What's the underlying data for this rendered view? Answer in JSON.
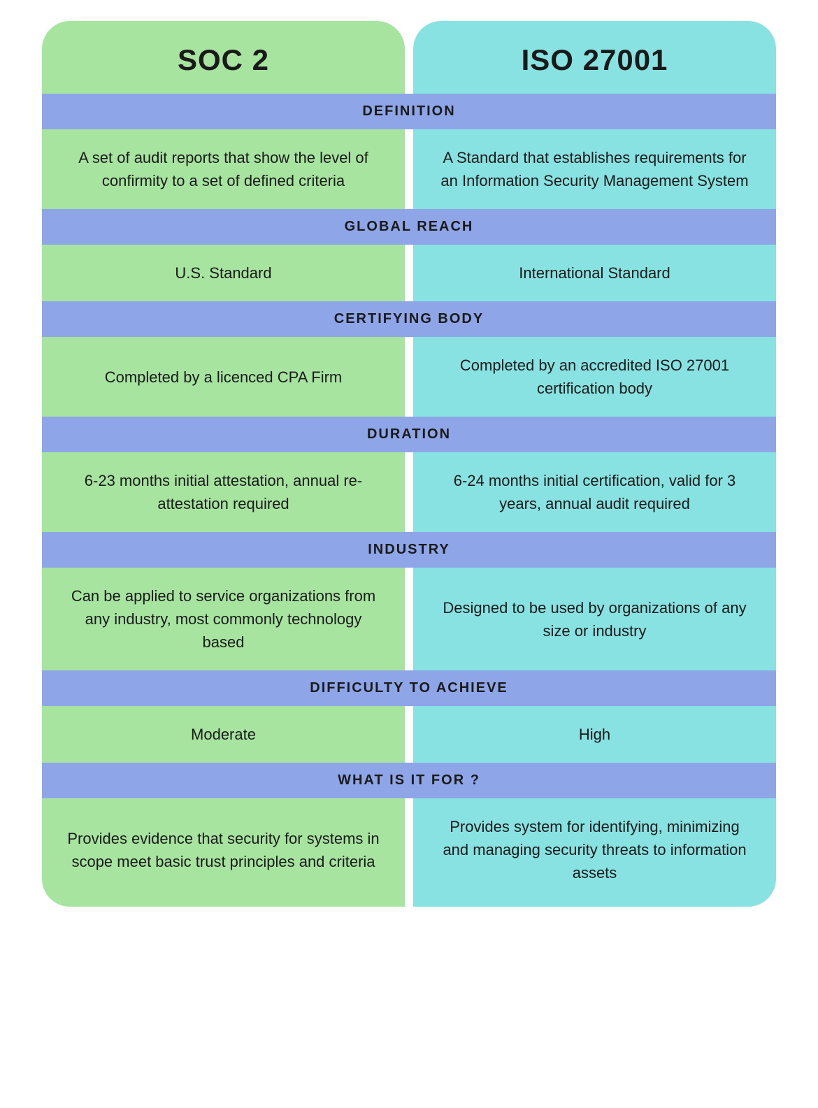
{
  "type": "infographic",
  "layout": "two-column-comparison",
  "colors": {
    "left_bg": "#a7e4a0",
    "right_bg": "#88e2e2",
    "section_header_bg": "#8ea5e8",
    "text": "#1a1a1a",
    "page_bg": "#ffffff"
  },
  "typography": {
    "header_fontsize": 42,
    "section_header_fontsize": 20,
    "content_fontsize": 22,
    "header_weight": 700,
    "section_header_weight": 700,
    "content_weight": 400
  },
  "border_radius": 40,
  "column_gap": 12,
  "headers": {
    "left": "SOC 2",
    "right": "ISO 27001"
  },
  "sections": [
    {
      "title": "DEFINITION",
      "left": "A set of audit reports that show the level of confirmity to a set of defined criteria",
      "right": "A Standard that establishes requirements for an Information Security Management System"
    },
    {
      "title": "GLOBAL REACH",
      "left": "U.S. Standard",
      "right": "International Standard"
    },
    {
      "title": "CERTIFYING BODY",
      "left": "Completed by a licenced CPA Firm",
      "right": "Completed by an accredited ISO 27001 certification body"
    },
    {
      "title": "DURATION",
      "left": "6-23 months initial attestation, annual re-attestation required",
      "right": "6-24 months initial certification, valid for 3 years, annual audit required"
    },
    {
      "title": "INDUSTRY",
      "left": "Can be applied to service organizations from any industry, most commonly technology based",
      "right": "Designed to be used by organizations of any size or industry"
    },
    {
      "title": "DIFFICULTY TO ACHIEVE",
      "left": "Moderate",
      "right": "High"
    },
    {
      "title": "WHAT IS IT FOR ?",
      "left": "Provides evidence that security for systems in scope meet basic trust principles and criteria",
      "right": "Provides system for identifying, minimizing and managing security threats to information assets"
    }
  ]
}
